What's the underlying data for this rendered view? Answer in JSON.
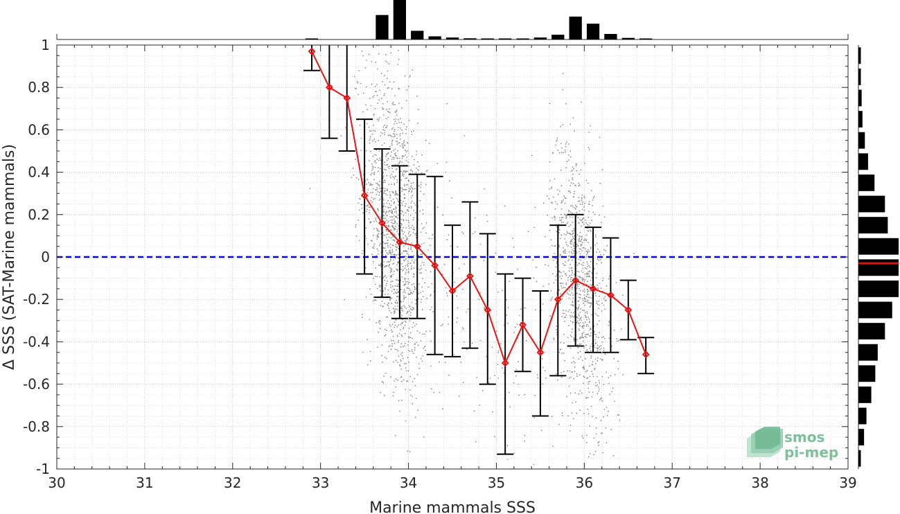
{
  "chart_data": {
    "type": "scatter",
    "xlabel": "Marine mammals SSS",
    "ylabel": "Δ SSS (SAT-Marine mammals)",
    "xlim": [
      30,
      39
    ],
    "ylim": [
      -1,
      1
    ],
    "x_ticks": [
      "30",
      "31",
      "32",
      "33",
      "34",
      "35",
      "36",
      "37",
      "38",
      "39"
    ],
    "y_ticks": [
      "-1",
      "-0.8",
      "-0.6",
      "-0.4",
      "-0.2",
      "0",
      "0.2",
      "0.4",
      "0.6",
      "0.8",
      "1"
    ],
    "grid": "minor dotted",
    "zero_line": {
      "y": 0,
      "color": "#0000dd",
      "style": "dashed"
    },
    "binned_mean": {
      "color": "#ee1111",
      "points": [
        {
          "x": 32.9,
          "y": 0.97,
          "lo": 0.88,
          "hi": 1.0
        },
        {
          "x": 33.1,
          "y": 0.8,
          "lo": 0.56,
          "hi": 1.0
        },
        {
          "x": 33.3,
          "y": 0.75,
          "lo": 0.5,
          "hi": 1.0
        },
        {
          "x": 33.5,
          "y": 0.29,
          "lo": -0.08,
          "hi": 0.65
        },
        {
          "x": 33.7,
          "y": 0.16,
          "lo": -0.19,
          "hi": 0.51
        },
        {
          "x": 33.9,
          "y": 0.07,
          "lo": -0.29,
          "hi": 0.43
        },
        {
          "x": 34.1,
          "y": 0.05,
          "lo": -0.29,
          "hi": 0.39
        },
        {
          "x": 34.3,
          "y": -0.04,
          "lo": -0.46,
          "hi": 0.38
        },
        {
          "x": 34.5,
          "y": -0.16,
          "lo": -0.47,
          "hi": 0.15
        },
        {
          "x": 34.7,
          "y": -0.09,
          "lo": -0.43,
          "hi": 0.26
        },
        {
          "x": 34.9,
          "y": -0.25,
          "lo": -0.6,
          "hi": 0.11
        },
        {
          "x": 35.1,
          "y": -0.5,
          "lo": -0.93,
          "hi": -0.08
        },
        {
          "x": 35.3,
          "y": -0.32,
          "lo": -0.54,
          "hi": -0.1
        },
        {
          "x": 35.5,
          "y": -0.45,
          "lo": -0.75,
          "hi": -0.16
        },
        {
          "x": 35.7,
          "y": -0.2,
          "lo": -0.56,
          "hi": 0.15
        },
        {
          "x": 35.9,
          "y": -0.11,
          "lo": -0.42,
          "hi": 0.2
        },
        {
          "x": 36.1,
          "y": -0.15,
          "lo": -0.45,
          "hi": 0.14
        },
        {
          "x": 36.3,
          "y": -0.18,
          "lo": -0.45,
          "hi": 0.09
        },
        {
          "x": 36.5,
          "y": -0.25,
          "lo": -0.39,
          "hi": -0.11
        },
        {
          "x": 36.7,
          "y": -0.46,
          "lo": -0.55,
          "hi": -0.38
        }
      ]
    },
    "scatter_clusters": [
      {
        "x_center": 33.85,
        "x_sd": 0.18,
        "y_center": 0.12,
        "y_sd": 0.35,
        "slope": -1.2,
        "count": 1400
      },
      {
        "x_center": 35.95,
        "x_sd": 0.17,
        "y_center": -0.12,
        "y_sd": 0.3,
        "slope": -1.4,
        "count": 1000
      },
      {
        "x_center": 35.0,
        "x_sd": 0.7,
        "y_center": -0.35,
        "y_sd": 0.35,
        "slope": -1.0,
        "count": 220
      }
    ],
    "top_histogram": {
      "bin_centers": [
        32.9,
        33.1,
        33.3,
        33.5,
        33.7,
        33.9,
        34.1,
        34.3,
        34.5,
        34.7,
        34.9,
        35.1,
        35.3,
        35.5,
        35.7,
        35.9,
        36.1,
        36.3,
        36.5,
        36.7
      ],
      "values": [
        0.02,
        0,
        0,
        0,
        0.62,
        1.0,
        0.22,
        0.08,
        0.05,
        0.03,
        0.02,
        0.02,
        0.02,
        0.05,
        0.12,
        0.58,
        0.4,
        0.14,
        0.04,
        0.02
      ]
    },
    "right_histogram": {
      "bin_centers": [
        0.95,
        0.85,
        0.75,
        0.65,
        0.55,
        0.45,
        0.35,
        0.25,
        0.15,
        0.05,
        -0.05,
        -0.15,
        -0.25,
        -0.35,
        -0.45,
        -0.55,
        -0.65,
        -0.75,
        -0.85,
        -0.95
      ],
      "values": [
        0.06,
        0.06,
        0.08,
        0.1,
        0.16,
        0.24,
        0.4,
        0.66,
        0.73,
        1.0,
        1.0,
        1.0,
        0.84,
        0.66,
        0.48,
        0.42,
        0.32,
        0.2,
        0.14,
        0.06
      ],
      "median_marker": -0.03,
      "median_color": "#dd1111"
    }
  },
  "logo": {
    "line1": "smos",
    "line2": "pi-mep"
  }
}
